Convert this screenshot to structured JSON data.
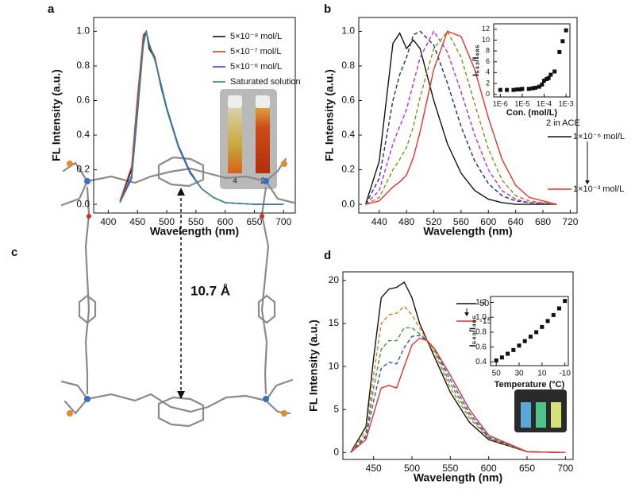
{
  "panel_labels": [
    "a",
    "b",
    "c",
    "d"
  ],
  "structure": {
    "annotation": "10.7 Å"
  },
  "chart_data": [
    {
      "type": "line",
      "xlabel": "Wavelength (nm)",
      "ylabel": "FL Intensity (a.u.)",
      "x": [
        420,
        440,
        450,
        460,
        465,
        470,
        480,
        490,
        500,
        520,
        540,
        560,
        580,
        600,
        650,
        700
      ],
      "series": [
        {
          "name": "5×10⁻⁸ mol/L",
          "color": "#111111",
          "values": [
            0.02,
            0.2,
            0.6,
            0.97,
            1.0,
            0.9,
            0.84,
            0.68,
            0.55,
            0.33,
            0.18,
            0.09,
            0.04,
            0.01,
            0,
            0
          ]
        },
        {
          "name": "5×10⁻⁷ mol/L",
          "color": "#e8312a",
          "values": [
            0.02,
            0.22,
            0.62,
            0.98,
            1.0,
            0.92,
            0.85,
            0.69,
            0.55,
            0.33,
            0.18,
            0.09,
            0.04,
            0.01,
            0,
            0
          ]
        },
        {
          "name": "5×10⁻⁶ mol/L",
          "color": "#3b3bef",
          "values": [
            0.01,
            0.15,
            0.52,
            0.92,
            1.0,
            0.93,
            0.83,
            0.7,
            0.56,
            0.34,
            0.19,
            0.09,
            0.04,
            0.01,
            0,
            0
          ]
        },
        {
          "name": "Saturated solution",
          "color": "#2e8b87",
          "values": [
            0.01,
            0.17,
            0.55,
            0.94,
            1.0,
            0.92,
            0.83,
            0.69,
            0.55,
            0.33,
            0.18,
            0.09,
            0.04,
            0.01,
            0,
            0
          ]
        }
      ],
      "annotations": [
        "4",
        "2"
      ],
      "xlim": [
        375,
        720
      ],
      "xticks": [
        400,
        450,
        500,
        550,
        600,
        650,
        700
      ],
      "ylim": [
        -0.05,
        1.08
      ],
      "yticks": [
        {
          "value": 0,
          "label": "0.0"
        },
        0.2,
        0.4,
        0.6,
        0.8,
        {
          "value": 1,
          "label": "1.0"
        }
      ]
    },
    {
      "type": "line",
      "xlabel": "Wavelength (nm)",
      "ylabel": "FL Intensity (a.u.)",
      "x": [
        420,
        440,
        460,
        470,
        480,
        490,
        500,
        520,
        540,
        560,
        580,
        600,
        620,
        640,
        660,
        700
      ],
      "series": [
        {
          "name": "1×10⁻⁶ mol/L",
          "color": "#111111",
          "values": [
            0,
            0.25,
            0.93,
            0.99,
            0.9,
            0.95,
            0.9,
            0.6,
            0.35,
            0.18,
            0.08,
            0.03,
            0.01,
            0,
            0,
            0
          ]
        },
        {
          "color": "#1f2a8a",
          "dash": true,
          "values": [
            0,
            0.15,
            0.6,
            0.75,
            0.85,
            0.98,
            1.0,
            0.92,
            0.7,
            0.45,
            0.25,
            0.12,
            0.05,
            0.02,
            0.01,
            0
          ]
        },
        {
          "color": "#c22fc2",
          "dash": true,
          "values": [
            0,
            0.08,
            0.35,
            0.45,
            0.55,
            0.7,
            0.85,
            1.0,
            0.88,
            0.65,
            0.4,
            0.2,
            0.08,
            0.03,
            0.01,
            0
          ]
        },
        {
          "color": "#8a8a1f",
          "dash": true,
          "values": [
            0,
            0.04,
            0.2,
            0.26,
            0.33,
            0.45,
            0.62,
            0.9,
            1.0,
            0.85,
            0.58,
            0.32,
            0.14,
            0.05,
            0.02,
            0
          ]
        },
        {
          "name": "1×10⁻³ mol/L",
          "color": "#e8312a",
          "values": [
            0,
            0.02,
            0.1,
            0.13,
            0.17,
            0.27,
            0.42,
            0.78,
            1.0,
            0.97,
            0.78,
            0.5,
            0.26,
            0.11,
            0.04,
            0
          ]
        }
      ],
      "legend_title": "2 in ACE",
      "xlim": [
        410,
        730
      ],
      "xticks": [
        440,
        480,
        520,
        560,
        600,
        640,
        680,
        720
      ],
      "ylim": [
        -0.05,
        1.08
      ],
      "yticks": [
        {
          "value": 0,
          "label": "0.0"
        },
        0.2,
        0.4,
        0.6,
        0.8,
        {
          "value": 1,
          "label": "1.0"
        }
      ]
    },
    {
      "type": "scatter",
      "xlabel": "Con. (mol/L)",
      "ylabel": "I₅₄₃/I₄₈₅",
      "log_x": true,
      "color": "#111111",
      "x": [
        1e-06,
        2e-06,
        4e-06,
        6e-06,
        8e-06,
        1e-05,
        2e-05,
        3e-05,
        4e-05,
        6e-05,
        8e-05,
        0.0001,
        0.00013,
        0.00016,
        0.0002,
        0.0003,
        0.0005,
        0.0007,
        0.001
      ],
      "values": [
        0.8,
        0.8,
        0.8,
        0.9,
        0.9,
        1,
        1,
        1.1,
        1.2,
        1.4,
        1.8,
        2.5,
        2.8,
        3,
        3.6,
        4.2,
        7.8,
        9.8,
        11.8
      ],
      "xlim": [
        5e-07,
        0.0015
      ],
      "xticks": [
        {
          "value": 1e-06,
          "label": "1E-6"
        },
        {
          "value": 1e-05,
          "label": "1E-5"
        },
        {
          "value": 0.0001,
          "label": "1E-4"
        },
        {
          "value": 0.001,
          "label": "1E-3"
        }
      ],
      "ylim": [
        -0.5,
        13
      ],
      "yticks": [
        0,
        2,
        4,
        6,
        8,
        10,
        12
      ]
    },
    {
      "type": "line",
      "xlabel": "Wavelength (nm)",
      "ylabel": "FL Intensity (a.u.)",
      "x": [
        420,
        440,
        450,
        460,
        470,
        480,
        490,
        500,
        510,
        520,
        530,
        550,
        575,
        600,
        650,
        700
      ],
      "series": [
        {
          "name": "50 °C",
          "color": "#111111",
          "values": [
            0,
            3,
            11,
            18,
            19,
            19.2,
            19.8,
            18,
            15,
            13,
            11,
            7,
            3.5,
            1.5,
            0.1,
            0
          ]
        },
        {
          "color": "#e07a1f",
          "dash": true,
          "values": [
            0,
            2.5,
            9,
            15,
            16,
            16.2,
            17,
            16,
            14.5,
            13,
            11.5,
            7.5,
            4,
            1.6,
            0.1,
            0
          ]
        },
        {
          "color": "#2f9a3a",
          "dash": true,
          "values": [
            0,
            2,
            7.5,
            12,
            13,
            13,
            14.5,
            14.5,
            13.8,
            13,
            11.8,
            8,
            4.3,
            1.7,
            0.1,
            0
          ]
        },
        {
          "color": "#2f4fc8",
          "dash": true,
          "values": [
            0,
            1.8,
            6,
            9.8,
            10.5,
            10.3,
            12.2,
            13.5,
            13.6,
            13,
            12,
            8.5,
            4.6,
            1.8,
            0.1,
            0
          ]
        },
        {
          "name": "-15 °C",
          "color": "#e8312a",
          "values": [
            0,
            1.5,
            4.5,
            7.5,
            7.8,
            7.5,
            10,
            12.5,
            13.3,
            13,
            12,
            9,
            5,
            2,
            0.1,
            0
          ]
        }
      ],
      "xlim": [
        410,
        710
      ],
      "xticks": [
        450,
        500,
        550,
        600,
        650,
        700
      ],
      "ylim": [
        -0.8,
        21
      ],
      "yticks": [
        0,
        5,
        10,
        15,
        20
      ]
    },
    {
      "type": "scatter",
      "xlabel": "Temperature (°C)",
      "ylabel": "I₅₄₃/I₄₈₅",
      "color": "#111111",
      "x": [
        50,
        45,
        40,
        35,
        30,
        25,
        20,
        15,
        10,
        5,
        0,
        -5,
        -10
      ],
      "values": [
        0.42,
        0.46,
        0.51,
        0.56,
        0.62,
        0.68,
        0.74,
        0.8,
        0.87,
        0.95,
        1.03,
        1.12,
        1.22
      ],
      "xlim": [
        55,
        -13
      ],
      "xticks": [
        50,
        30,
        10,
        -10
      ],
      "ylim": [
        0.35,
        1.28
      ],
      "yticks": [
        0.4,
        0.6,
        0.8,
        {
          "value": 1,
          "label": "1.0"
        },
        1.2
      ]
    }
  ]
}
